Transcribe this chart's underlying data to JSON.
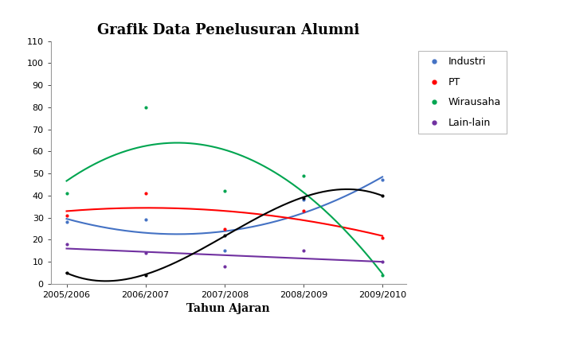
{
  "title": "Grafik Data Penelusuran Alumni",
  "xlabel": "Tahun Ajaran",
  "x_labels": [
    "2005/2006",
    "2006/2007",
    "2007/2008",
    "2008/2009",
    "2009/2010"
  ],
  "x_numeric": [
    0,
    1,
    2,
    3,
    4
  ],
  "ylim": [
    0,
    110
  ],
  "yticks": [
    0,
    10,
    20,
    30,
    40,
    50,
    60,
    70,
    80,
    90,
    100,
    110
  ],
  "series": {
    "Industri": {
      "color": "#4472C4",
      "scatter": [
        28,
        29,
        15,
        38,
        47
      ],
      "poly_degree": 3
    },
    "PT": {
      "color": "#FF0000",
      "scatter": [
        31,
        41,
        25,
        33,
        21
      ],
      "poly_degree": 2
    },
    "Wirausaha": {
      "color": "#00A550",
      "scatter": [
        41,
        80,
        42,
        49,
        4
      ],
      "poly_degree": 2
    },
    "Lain-lain": {
      "color": "#7030A0",
      "scatter": [
        18,
        14,
        8,
        15,
        10
      ],
      "poly_degree": 1
    },
    "Bekerja": {
      "color": "#000000",
      "scatter": [
        5,
        4,
        22,
        39,
        40
      ],
      "poly_degree": 3
    }
  },
  "legend_items": [
    "Industri",
    "PT",
    "Wirausaha",
    "Lain-lain"
  ],
  "legend_colors": [
    "#4472C4",
    "#FF0000",
    "#00A550",
    "#7030A0"
  ],
  "background_color": "#ffffff",
  "title_fontsize": 13,
  "label_fontsize": 10,
  "tick_fontsize": 8
}
